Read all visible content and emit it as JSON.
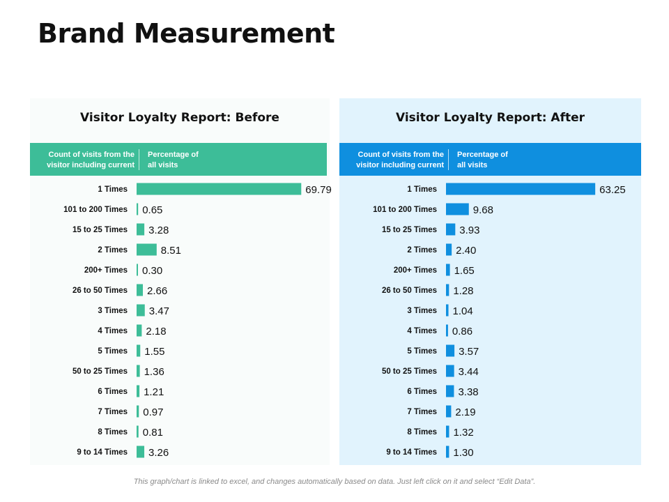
{
  "page": {
    "title": "Brand Measurement",
    "footer_note": "This graph/chart is linked to excel, and changes automatically based on data. Just left click on it and select “Edit Data”."
  },
  "colors": {
    "before_bar": "#3dbd98",
    "after_bar": "#0f8fdf",
    "before_bg": "#f9fcfb",
    "after_bg": "#e1f3fd"
  },
  "panels": [
    {
      "title": "Visitor Loyalty Report: Before",
      "col1_header_line1": "Count of visits from the",
      "col1_header_line2": "visitor including current",
      "col2_header_line1": "Percentage of",
      "col2_header_line2": "all visits"
    },
    {
      "title": "Visitor Loyalty Report: After",
      "col1_header_line1": "Count of visits from the",
      "col1_header_line2": "visitor including current",
      "col2_header_line1": "Percentage of",
      "col2_header_line2": "all visits"
    }
  ],
  "chart_data": [
    {
      "type": "bar",
      "orientation": "horizontal",
      "title": "Visitor Loyalty Report: Before",
      "categories": [
        "1 Times",
        "101 to 200 Times",
        "15 to 25 Times",
        "2 Times",
        "200+ Times",
        "26 to 50 Times",
        "3 Times",
        "4 Times",
        "5 Times",
        "50 to 25 Times",
        "6 Times",
        "7 Times",
        "8 Times",
        "9 to 14 Times"
      ],
      "values": [
        69.79,
        0.65,
        3.28,
        8.51,
        0.3,
        2.66,
        3.47,
        2.18,
        1.55,
        1.36,
        1.21,
        0.97,
        0.81,
        3.26
      ],
      "labels": [
        "69.79",
        "0.65",
        "3.28",
        "8.51",
        "0.30",
        "2.66",
        "3.47",
        "2.18",
        "1.55",
        "1.36",
        "1.21",
        "0.97",
        "0.81",
        "3.26"
      ],
      "xlim": [
        0,
        70
      ],
      "grid": false,
      "legend": "none"
    },
    {
      "type": "bar",
      "orientation": "horizontal",
      "title": "Visitor Loyalty Report: After",
      "categories": [
        "1 Times",
        "101 to 200 Times",
        "15 to 25 Times",
        "2 Times",
        "200+ Times",
        "26 to 50 Times",
        "3 Times",
        "4 Times",
        "5 Times",
        "50 to 25 Times",
        "6 Times",
        "7 Times",
        "8 Times",
        "9 to 14 Times"
      ],
      "values": [
        63.25,
        9.68,
        3.93,
        2.4,
        1.65,
        1.28,
        1.04,
        0.86,
        3.57,
        3.44,
        3.38,
        2.19,
        1.32,
        1.3
      ],
      "labels": [
        "63.25",
        "9.68",
        "3.93",
        "2.40",
        "1.65",
        "1.28",
        "1.04",
        "0.86",
        "3.57",
        "3.44",
        "3.38",
        "2.19",
        "1.32",
        "1.30"
      ],
      "xlim": [
        0,
        70
      ],
      "grid": false,
      "legend": "none"
    }
  ]
}
